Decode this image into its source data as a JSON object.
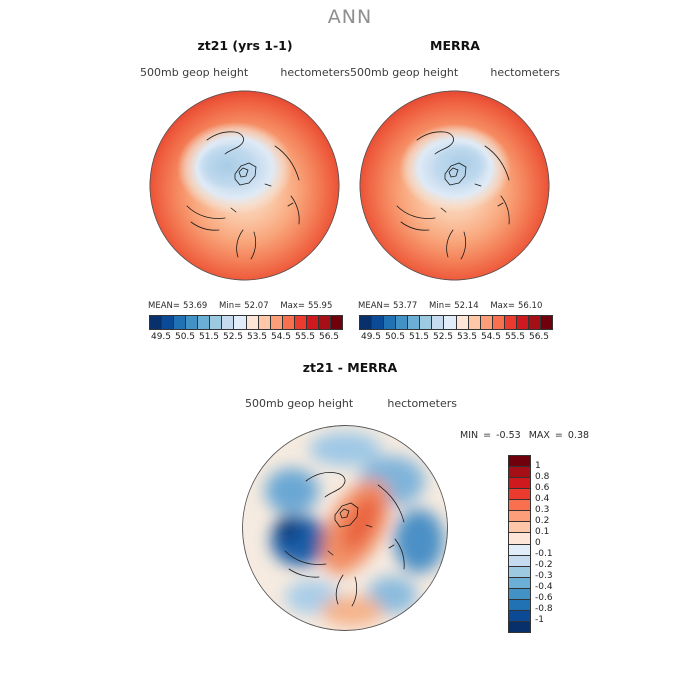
{
  "header": {
    "title": "ANN"
  },
  "labels": {
    "mean": "MEAN=",
    "min": "Min=",
    "max": "Max=",
    "diff_min": "MIN",
    "diff_max": "MAX",
    "eq": "="
  },
  "chart_data": [
    {
      "type": "heatmap",
      "projection": "north-polar-stereographic",
      "title": "zt21 (yrs 1-1)",
      "variable": "500mb geop height",
      "units": "hectometers",
      "stats": {
        "mean": "53.69",
        "min": "52.07",
        "max": "55.95"
      },
      "colorbar": {
        "orientation": "horizontal",
        "range_min": 49.0,
        "range_max": 57.0,
        "step": 0.5,
        "ticks": [
          "49.5",
          "50.5",
          "51.5",
          "52.5",
          "53.5",
          "54.5",
          "55.5",
          "56.5"
        ],
        "palette": [
          "#08306b",
          "#0a4a96",
          "#2171b5",
          "#4292c6",
          "#6baed6",
          "#9ecae1",
          "#c6dbef",
          "#e1edf8",
          "#fde6d8",
          "#fdc7a8",
          "#fc9e7a",
          "#f9704e",
          "#ea3b2e",
          "#ce1a1e",
          "#a50f15",
          "#71000d"
        ]
      }
    },
    {
      "type": "heatmap",
      "projection": "north-polar-stereographic",
      "title": "MERRA",
      "variable": "500mb geop height",
      "units": "hectometers",
      "stats": {
        "mean": "53.77",
        "min": "52.14",
        "max": "56.10"
      },
      "colorbar": {
        "orientation": "horizontal",
        "range_min": 49.0,
        "range_max": 57.0,
        "step": 0.5,
        "ticks": [
          "49.5",
          "50.5",
          "51.5",
          "52.5",
          "53.5",
          "54.5",
          "55.5",
          "56.5"
        ],
        "palette": [
          "#08306b",
          "#0a4a96",
          "#2171b5",
          "#4292c6",
          "#6baed6",
          "#9ecae1",
          "#c6dbef",
          "#e1edf8",
          "#fde6d8",
          "#fdc7a8",
          "#fc9e7a",
          "#f9704e",
          "#ea3b2e",
          "#ce1a1e",
          "#a50f15",
          "#71000d"
        ]
      }
    },
    {
      "type": "heatmap",
      "projection": "north-polar-stereographic",
      "title": "zt21 - MERRA",
      "variable": "500mb geop height",
      "units": "hectometers",
      "stats": {
        "min": "-0.53",
        "max": "0.38"
      },
      "colorbar": {
        "orientation": "vertical",
        "labels": [
          "1",
          "0.8",
          "0.6",
          "0.4",
          "0.3",
          "0.2",
          "0.1",
          "0",
          "-0.1",
          "-0.2",
          "-0.3",
          "-0.4",
          "-0.6",
          "-0.8",
          "-1"
        ],
        "palette": [
          "#71000d",
          "#a50f15",
          "#ce1a1e",
          "#ea3b2e",
          "#f9704e",
          "#fc9e7a",
          "#fdc7a8",
          "#fde6d8",
          "#e1edf8",
          "#c6dbef",
          "#9ecae1",
          "#6baed6",
          "#4292c6",
          "#2171b5",
          "#0a4a96",
          "#08306b"
        ]
      }
    }
  ]
}
